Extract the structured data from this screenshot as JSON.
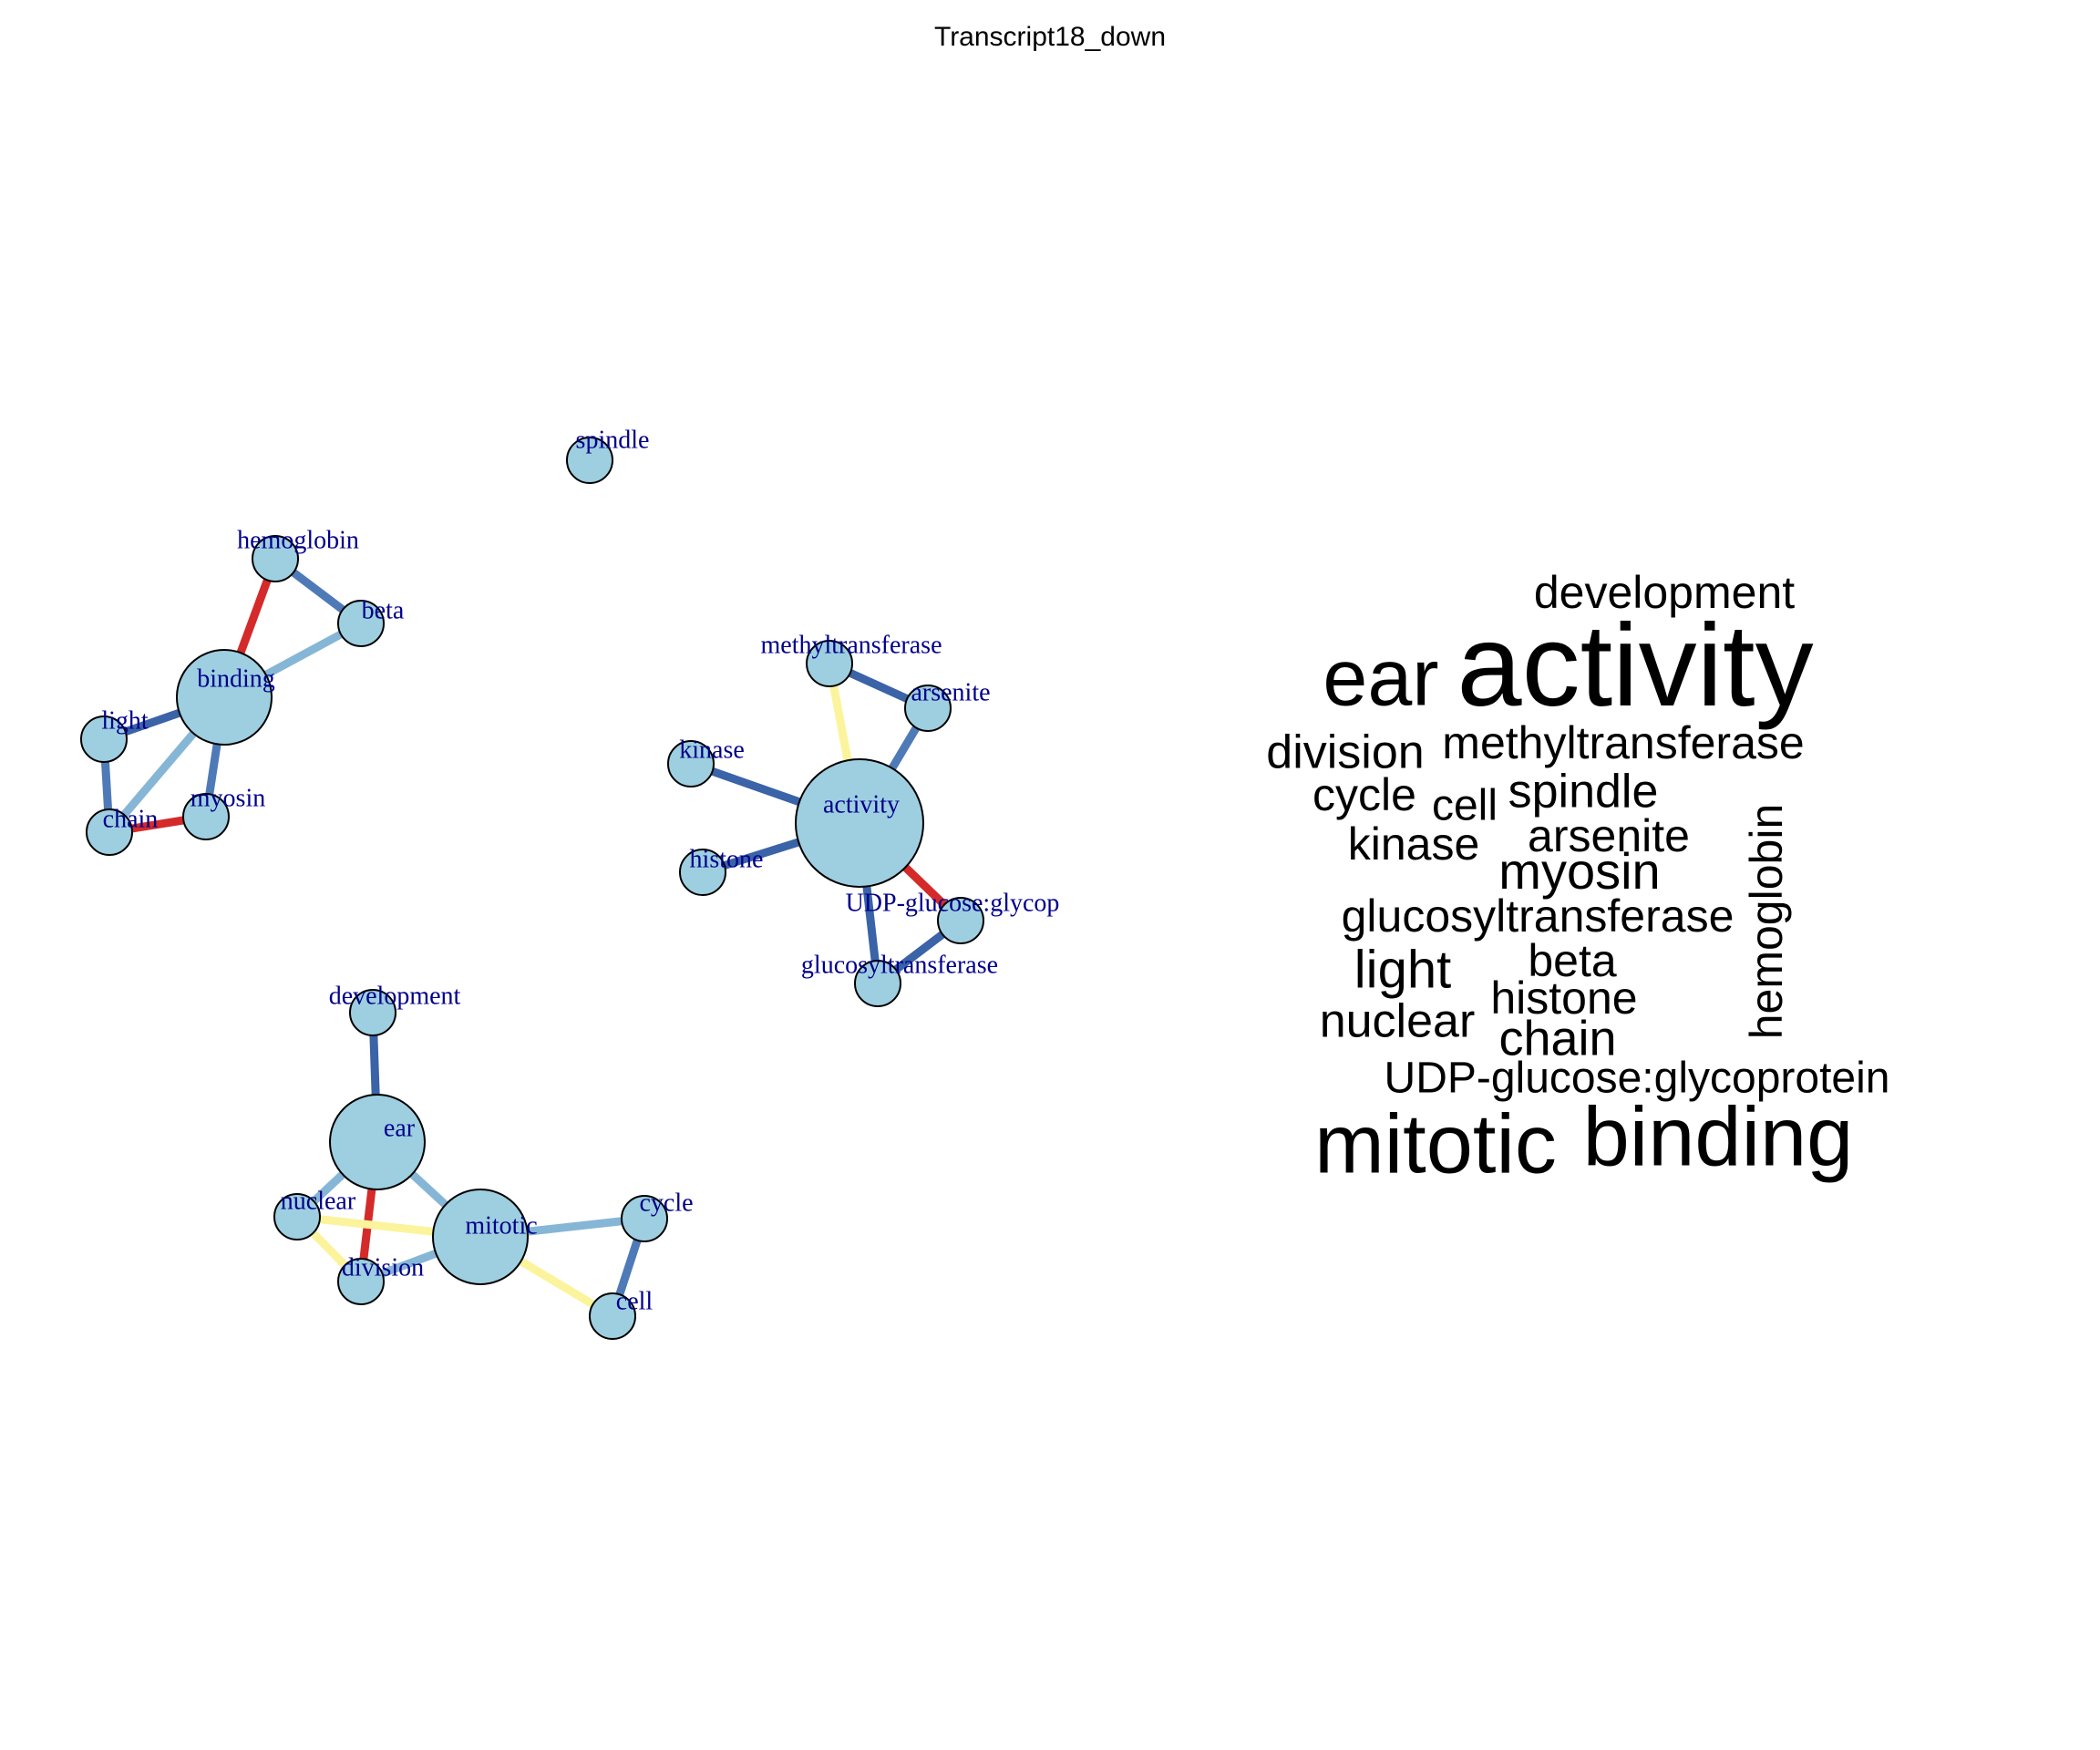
{
  "title": "Transcript18_down",
  "colors": {
    "node_fill": "#9ecfe0",
    "node_stroke": "#000000",
    "label": "#00008b",
    "edge_dark_blue": "#3a63a8",
    "edge_mid_blue": "#4f7ab8",
    "edge_light_blue": "#86b6d6",
    "edge_red": "#d42a2a",
    "edge_yellow": "#fbf49c",
    "cloud_text": "#000000"
  },
  "network": {
    "nodes": [
      {
        "id": "spindle",
        "label": "spindle",
        "size": "small"
      },
      {
        "id": "hemoglobin",
        "label": "hemoglobin",
        "size": "small"
      },
      {
        "id": "beta",
        "label": "beta",
        "size": "small"
      },
      {
        "id": "binding",
        "label": "binding",
        "size": "large"
      },
      {
        "id": "light",
        "label": "light",
        "size": "small"
      },
      {
        "id": "chain",
        "label": "chain",
        "size": "small"
      },
      {
        "id": "myosin",
        "label": "myosin",
        "size": "small"
      },
      {
        "id": "methyltransferase",
        "label": "methyltransferase",
        "size": "small"
      },
      {
        "id": "arsenite",
        "label": "arsenite",
        "size": "small"
      },
      {
        "id": "kinase",
        "label": "kinase",
        "size": "small"
      },
      {
        "id": "activity",
        "label": "activity",
        "size": "xlarge"
      },
      {
        "id": "histone",
        "label": "histone",
        "size": "small"
      },
      {
        "id": "udp",
        "label": "UDP-glucose:glycop",
        "size": "small"
      },
      {
        "id": "glucosyltransferase",
        "label": "glucosyltransferase",
        "size": "small"
      },
      {
        "id": "development",
        "label": "development",
        "size": "small"
      },
      {
        "id": "ear",
        "label": "ear",
        "size": "large"
      },
      {
        "id": "nuclear",
        "label": "nuclear",
        "size": "small"
      },
      {
        "id": "mitotic",
        "label": "mitotic",
        "size": "large"
      },
      {
        "id": "division",
        "label": "division",
        "size": "small"
      },
      {
        "id": "cycle",
        "label": "cycle",
        "size": "small"
      },
      {
        "id": "cell",
        "label": "cell",
        "size": "small"
      }
    ],
    "edges": [
      {
        "from": "hemoglobin",
        "to": "binding",
        "color": "red"
      },
      {
        "from": "hemoglobin",
        "to": "beta",
        "color": "mid_blue"
      },
      {
        "from": "beta",
        "to": "binding",
        "color": "light_blue"
      },
      {
        "from": "binding",
        "to": "light",
        "color": "dark_blue"
      },
      {
        "from": "binding",
        "to": "chain",
        "color": "light_blue"
      },
      {
        "from": "binding",
        "to": "myosin",
        "color": "mid_blue"
      },
      {
        "from": "light",
        "to": "chain",
        "color": "mid_blue"
      },
      {
        "from": "chain",
        "to": "myosin",
        "color": "red"
      },
      {
        "from": "methyltransferase",
        "to": "activity",
        "color": "yellow"
      },
      {
        "from": "methyltransferase",
        "to": "arsenite",
        "color": "dark_blue"
      },
      {
        "from": "arsenite",
        "to": "activity",
        "color": "mid_blue"
      },
      {
        "from": "kinase",
        "to": "activity",
        "color": "dark_blue"
      },
      {
        "from": "histone",
        "to": "activity",
        "color": "dark_blue"
      },
      {
        "from": "activity",
        "to": "udp",
        "color": "red"
      },
      {
        "from": "activity",
        "to": "glucosyltransferase",
        "color": "dark_blue"
      },
      {
        "from": "udp",
        "to": "glucosyltransferase",
        "color": "dark_blue"
      },
      {
        "from": "development",
        "to": "ear",
        "color": "dark_blue"
      },
      {
        "from": "ear",
        "to": "mitotic",
        "color": "light_blue"
      },
      {
        "from": "ear",
        "to": "nuclear",
        "color": "light_blue"
      },
      {
        "from": "ear",
        "to": "division",
        "color": "red"
      },
      {
        "from": "nuclear",
        "to": "mitotic",
        "color": "yellow"
      },
      {
        "from": "nuclear",
        "to": "division",
        "color": "yellow"
      },
      {
        "from": "division",
        "to": "mitotic",
        "color": "light_blue"
      },
      {
        "from": "mitotic",
        "to": "cycle",
        "color": "light_blue"
      },
      {
        "from": "mitotic",
        "to": "cell",
        "color": "yellow"
      },
      {
        "from": "cycle",
        "to": "cell",
        "color": "mid_blue"
      }
    ]
  },
  "word_cloud": [
    {
      "text": "development",
      "size": "medium"
    },
    {
      "text": "activity",
      "size": "xlarge"
    },
    {
      "text": "ear",
      "size": "large"
    },
    {
      "text": "division",
      "size": "medium"
    },
    {
      "text": "methyltransferase",
      "size": "medium"
    },
    {
      "text": "cycle",
      "size": "medium"
    },
    {
      "text": "cell",
      "size": "medium"
    },
    {
      "text": "spindle",
      "size": "medium"
    },
    {
      "text": "arsenite",
      "size": "medium"
    },
    {
      "text": "kinase",
      "size": "medium"
    },
    {
      "text": "myosin",
      "size": "medium"
    },
    {
      "text": "hemoglobin",
      "size": "medium",
      "rotated": true
    },
    {
      "text": "glucosyltransferase",
      "size": "medium"
    },
    {
      "text": "light",
      "size": "medium"
    },
    {
      "text": "beta",
      "size": "medium"
    },
    {
      "text": "histone",
      "size": "medium"
    },
    {
      "text": "nuclear",
      "size": "medium"
    },
    {
      "text": "chain",
      "size": "medium"
    },
    {
      "text": "UDP-glucose:glycoprotein",
      "size": "medium"
    },
    {
      "text": "mitotic",
      "size": "large"
    },
    {
      "text": "binding",
      "size": "large"
    }
  ]
}
